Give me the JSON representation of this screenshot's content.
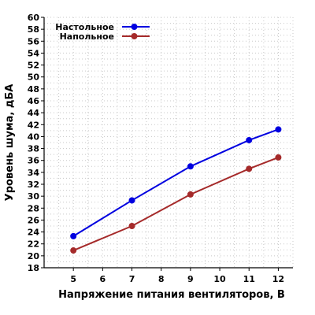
{
  "chart_data": {
    "type": "line",
    "title": "",
    "xlabel": "Напряжение питания вентиляторов, В",
    "ylabel": "Уровень шума, дБА",
    "x_ticks": [
      5,
      6,
      7,
      8,
      9,
      10,
      11,
      12
    ],
    "y_ticks": [
      18,
      20,
      22,
      24,
      26,
      28,
      30,
      32,
      34,
      36,
      38,
      40,
      42,
      44,
      46,
      48,
      50,
      52,
      54,
      56,
      58,
      60
    ],
    "xlim": [
      4,
      12.5
    ],
    "ylim": [
      18,
      60
    ],
    "grid": true,
    "legend_position": "top-left",
    "series": [
      {
        "name": "Настольное",
        "color": "#0000e0",
        "x": [
          5,
          7,
          9,
          11,
          12
        ],
        "y": [
          23.3,
          29.3,
          35.0,
          39.4,
          41.2
        ]
      },
      {
        "name": "Напольное",
        "color": "#a52a2a",
        "x": [
          5,
          7,
          9,
          11,
          12
        ],
        "y": [
          20.9,
          25.0,
          30.3,
          34.6,
          36.5
        ]
      }
    ]
  }
}
